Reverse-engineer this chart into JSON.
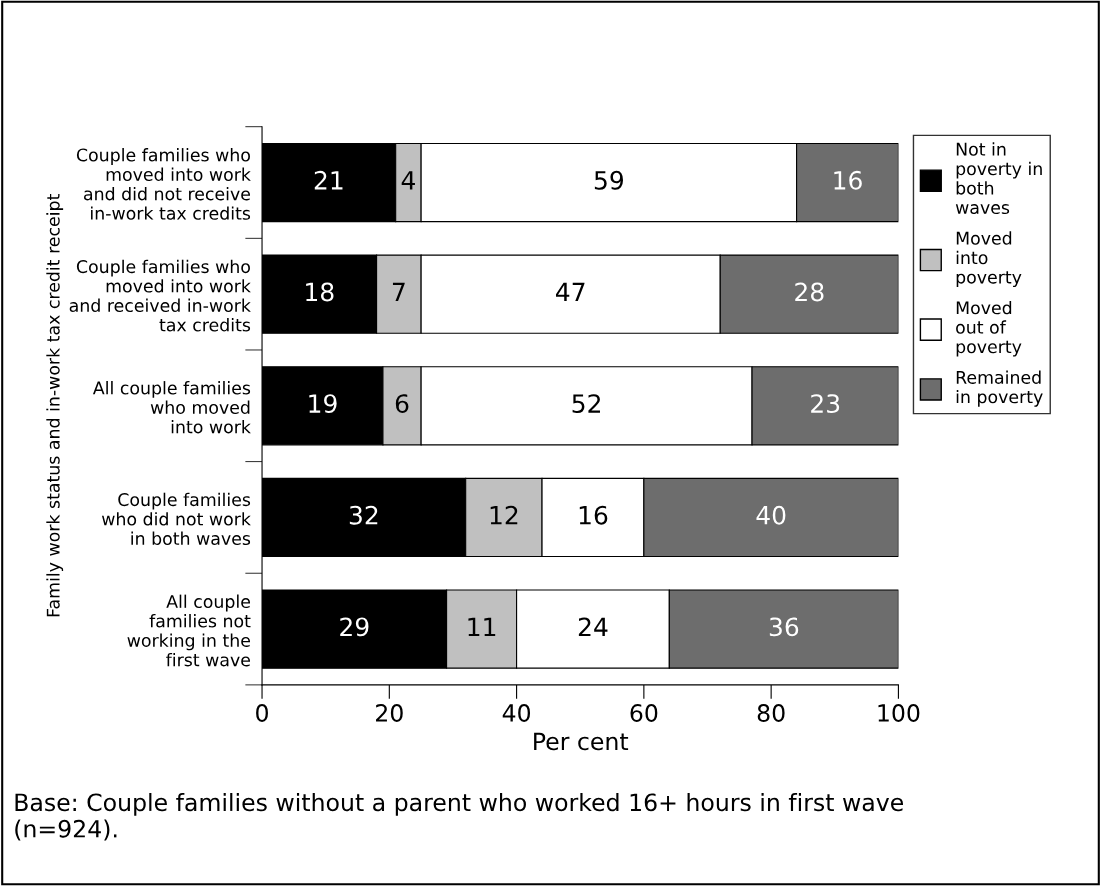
{
  "chart_data": {
    "type": "bar",
    "orientation": "horizontal",
    "stacked": true,
    "categories": [
      "Couple families who\nmoved into work\nand did not receive\nin-work tax credits",
      "Couple families who\nmoved into work\nand received in-work\ntax credits",
      "All couple families\nwho moved\ninto work",
      "Couple families\nwho did not work\nin both waves",
      "All couple\nfamilies not\nworking in the\nfirst wave"
    ],
    "series": [
      {
        "name": "Not in\npoverty in\nboth\nwaves",
        "color": "#000000",
        "values": [
          21,
          18,
          19,
          32,
          29
        ]
      },
      {
        "name": "Moved\ninto\npoverty",
        "color": "#c0c0c0",
        "values": [
          4,
          7,
          6,
          12,
          11
        ]
      },
      {
        "name": "Moved\nout of\npoverty",
        "color": "#ffffff",
        "values": [
          59,
          47,
          52,
          16,
          24
        ]
      },
      {
        "name": "Remained\nin poverty",
        "color": "#6d6d6d",
        "values": [
          16,
          28,
          23,
          40,
          36
        ]
      }
    ],
    "xlim": [
      0,
      100
    ],
    "xticks": [
      0,
      20,
      40,
      60,
      80,
      100
    ],
    "xlabel": "Per cent",
    "ylabel": "Family work status and in-work tax credit receipt",
    "data_labels": true,
    "legend": "top right",
    "grid": false,
    "annotations": [
      "Base: Couple families without a parent who worked 16+ hours in first wave\n(n=924)."
    ]
  }
}
